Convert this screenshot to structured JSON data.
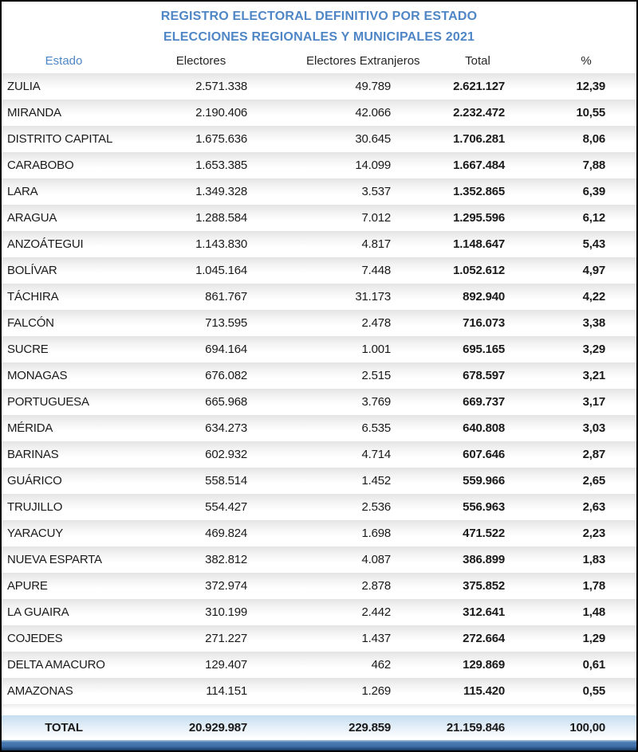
{
  "title": {
    "line1": "REGISTRO ELECTORAL DEFINITIVO POR ESTADO",
    "line2": "ELECCIONES REGIONALES Y MUNICIPALES 2021"
  },
  "colors": {
    "title_blue": "#4f86c6",
    "estado_header_blue": "#4f86c6",
    "row_stripe_gray": "#e4e4e4",
    "total_row_light_blue": "#c5ddf0",
    "bottom_bar_blue": "#3e6fa8",
    "bottom_edge_navy": "#17375e",
    "body_text": "#1a1a1a",
    "page_border": "#000000"
  },
  "chart_data": {
    "type": "table",
    "title": "REGISTRO ELECTORAL DEFINITIVO POR ESTADO",
    "subtitle": "ELECCIONES REGIONALES Y MUNICIPALES 2021",
    "columns": [
      "Estado",
      "Electores",
      "Electores Extranjeros",
      "Total",
      "%"
    ],
    "number_format": "es-VE (dot thousands separator, comma decimal)",
    "rows": [
      [
        "ZULIA",
        "2.571.338",
        "49.789",
        "2.621.127",
        "12,39"
      ],
      [
        "MIRANDA",
        "2.190.406",
        "42.066",
        "2.232.472",
        "10,55"
      ],
      [
        "DISTRITO CAPITAL",
        "1.675.636",
        "30.645",
        "1.706.281",
        "8,06"
      ],
      [
        "CARABOBO",
        "1.653.385",
        "14.099",
        "1.667.484",
        "7,88"
      ],
      [
        "LARA",
        "1.349.328",
        "3.537",
        "1.352.865",
        "6,39"
      ],
      [
        "ARAGUA",
        "1.288.584",
        "7.012",
        "1.295.596",
        "6,12"
      ],
      [
        "ANZOÁTEGUI",
        "1.143.830",
        "4.817",
        "1.148.647",
        "5,43"
      ],
      [
        "BOLÍVAR",
        "1.045.164",
        "7.448",
        "1.052.612",
        "4,97"
      ],
      [
        "TÁCHIRA",
        "861.767",
        "31.173",
        "892.940",
        "4,22"
      ],
      [
        "FALCÓN",
        "713.595",
        "2.478",
        "716.073",
        "3,38"
      ],
      [
        "SUCRE",
        "694.164",
        "1.001",
        "695.165",
        "3,29"
      ],
      [
        "MONAGAS",
        "676.082",
        "2.515",
        "678.597",
        "3,21"
      ],
      [
        "PORTUGUESA",
        "665.968",
        "3.769",
        "669.737",
        "3,17"
      ],
      [
        "MÉRIDA",
        "634.273",
        "6.535",
        "640.808",
        "3,03"
      ],
      [
        "BARINAS",
        "602.932",
        "4.714",
        "607.646",
        "2,87"
      ],
      [
        "GUÁRICO",
        "558.514",
        "1.452",
        "559.966",
        "2,65"
      ],
      [
        "TRUJILLO",
        "554.427",
        "2.536",
        "556.963",
        "2,63"
      ],
      [
        "YARACUY",
        "469.824",
        "1.698",
        "471.522",
        "2,23"
      ],
      [
        "NUEVA ESPARTA",
        "382.812",
        "4.087",
        "386.899",
        "1,83"
      ],
      [
        "APURE",
        "372.974",
        "2.878",
        "375.852",
        "1,78"
      ],
      [
        "LA GUAIRA",
        "310.199",
        "2.442",
        "312.641",
        "1,48"
      ],
      [
        "COJEDES",
        "271.227",
        "1.437",
        "272.664",
        "1,29"
      ],
      [
        "DELTA AMACURO",
        "129.407",
        "462",
        "129.869",
        "0,61"
      ],
      [
        "AMAZONAS",
        "114.151",
        "1.269",
        "115.420",
        "0,55"
      ]
    ],
    "total": [
      "TOTAL",
      "20.929.987",
      "229.859",
      "21.159.846",
      "100,00"
    ]
  }
}
